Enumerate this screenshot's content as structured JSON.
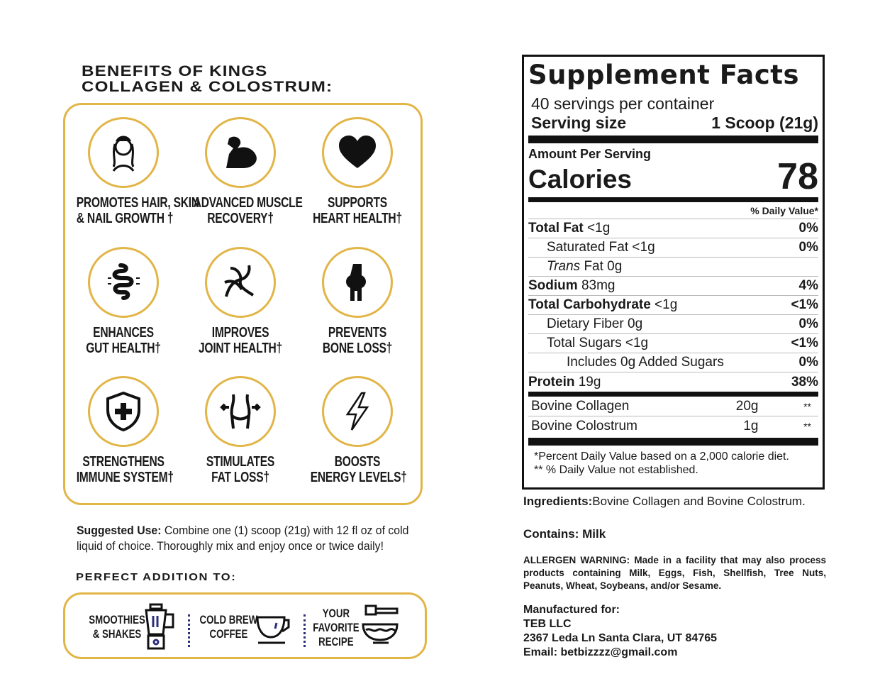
{
  "benefits": {
    "title_line1": "BENEFITS OF KINGS",
    "title_line2": "COLLAGEN & COLOSTRUM:",
    "items": [
      {
        "l1": "PROMOTES HAIR, SKIN",
        "l2": "& NAIL GROWTH †",
        "icon": "woman-portrait-icon"
      },
      {
        "l1": "ADVANCED MUSCLE",
        "l2": "RECOVERY†",
        "icon": "flexed-arm-icon"
      },
      {
        "l1": "SUPPORTS",
        "l2": "HEART HEALTH†",
        "icon": "heart-icon"
      },
      {
        "l1": "ENHANCES",
        "l2": "GUT HEALTH†",
        "icon": "intestine-icon"
      },
      {
        "l1": "IMPROVES",
        "l2": "JOINT HEALTH†",
        "icon": "joint-icon"
      },
      {
        "l1": "PREVENTS",
        "l2": "BONE LOSS†",
        "icon": "knee-bone-icon"
      },
      {
        "l1": "STRENGTHENS",
        "l2": "IMMUNE SYSTEM†",
        "icon": "shield-cross-icon"
      },
      {
        "l1": "STIMULATES",
        "l2": "FAT LOSS†",
        "icon": "waist-icon"
      },
      {
        "l1": "BOOSTS",
        "l2": "ENERGY LEVELS†",
        "icon": "lightning-icon"
      }
    ]
  },
  "suggested_use": {
    "label": "Suggested Use:",
    "line1": " Combine one (1) scoop (21g) with 12 fl oz of cold",
    "line2": "liquid of choice. Thoroughly mix and enjoy once or twice daily!"
  },
  "perfect": {
    "title": "PERFECT ADDITION TO:",
    "items": [
      {
        "l1": "SMOOTHIES",
        "l2": "& SHAKES",
        "icon": "blender-icon"
      },
      {
        "l1": "COLD BREW",
        "l2": "COFFEE",
        "icon": "coffee-cup-icon"
      },
      {
        "l1": "YOUR",
        "l2": "FAVORITE",
        "l3": "RECIPE",
        "icon": "mixing-bowl-icon"
      }
    ]
  },
  "facts": {
    "title": "Supplement Facts",
    "servings": "40 servings per container",
    "serving_label": "Serving size",
    "serving_value": "1 Scoop (21g)",
    "amount_label": "Amount Per Serving",
    "calories_label": "Calories",
    "calories": "78",
    "dv_header": "% Daily Value*",
    "rows": [
      {
        "name": "Total Fat",
        "amt": " <1g",
        "dv": "0%",
        "bold": true
      },
      {
        "name": "Saturated Fat <1g",
        "amt": "",
        "dv": "0%"
      },
      {
        "name": "Trans",
        "amt": " Fat 0g",
        "dv": ""
      },
      {
        "name": "Sodium",
        "amt": " 83mg",
        "dv": "4%",
        "bold": true
      },
      {
        "name": "Total Carbohydrate",
        "amt": " <1g",
        "dv": "<1%",
        "bold": true
      },
      {
        "name": "Dietary Fiber 0g",
        "amt": "",
        "dv": "0%"
      },
      {
        "name": "Total Sugars <1g",
        "amt": "",
        "dv": "<1%"
      },
      {
        "name": "Includes 0g Added Sugars",
        "amt": "",
        "dv": "0%"
      },
      {
        "name": "Protein",
        "amt": " 19g",
        "dv": "38%",
        "bold": true
      }
    ],
    "ingredients": [
      {
        "name": "Bovine Collagen",
        "amt": "20g",
        "dv": "**"
      },
      {
        "name": "Bovine Colostrum",
        "amt": "1g",
        "dv": "**"
      }
    ],
    "foot1": "*Percent Daily Value based on a 2,000 calorie diet.",
    "foot2": "** % Daily Value not established."
  },
  "ingredients": {
    "label": "Ingredients:",
    "text": "Bovine Collagen and Bovine Colostrum."
  },
  "contains": "Contains: Milk",
  "allergen": "ALLERGEN WARNING: Made in a facility that may also process products containing Milk, Eggs, Fish, Shellfish, Tree Nuts, Peanuts, Wheat, Soybeans, and/or Sesame.",
  "manufacturer": {
    "label": "Manufactured for:",
    "name": "TEB LLC",
    "address": "2367 Leda Ln Santa Clara, UT 84765",
    "email": "Email: betbizzzz@gmail.com"
  },
  "colors": {
    "gold": "#e2b547",
    "navy": "#2c2f7a"
  }
}
